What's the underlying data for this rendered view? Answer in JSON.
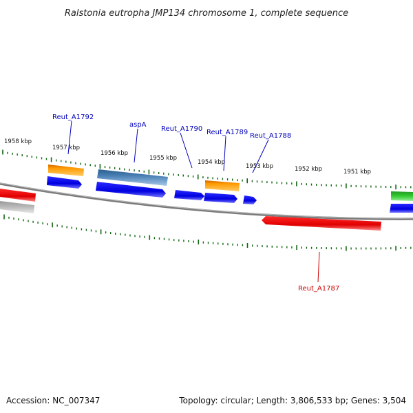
{
  "title": "Ralstonia eutropha JMP134 chromosome 1, complete sequence",
  "footer": {
    "accession": "Accession: NC_007347",
    "topology": "Topology: circular; Length: 3,806,533 bp; Genes: 3,504"
  },
  "colors": {
    "forward_cds": "#0a0aee",
    "reverse_cds": "#ee1111",
    "rna": "#ff9900",
    "pseudo": "#4477aa",
    "other": "#33bb33",
    "gray": "#bbbbbb",
    "backbone": "#808080",
    "ticks": "#116611",
    "label_forward": "#0000bb",
    "label_reverse": "#cc0000"
  },
  "kbp_labels": [
    "1958 kbp",
    "1957 kbp",
    "1956 kbp",
    "1955 kbp",
    "1954 kbp",
    "1953 kbp",
    "1952 kbp",
    "1951 kbp"
  ],
  "gene_labels": [
    {
      "id": "lbl-reut-a1792",
      "text": "Reut_A1792",
      "strand": "forward"
    },
    {
      "id": "lbl-aspa",
      "text": "aspA",
      "strand": "forward"
    },
    {
      "id": "lbl-reut-a1790",
      "text": "Reut_A1790",
      "strand": "forward"
    },
    {
      "id": "lbl-reut-a1789",
      "text": "Reut_A1789",
      "strand": "forward"
    },
    {
      "id": "lbl-reut-a1788",
      "text": "Reut_A1788",
      "strand": "forward"
    },
    {
      "id": "lbl-reut-a1787",
      "text": "Reut_A1787",
      "strand": "reverse"
    }
  ]
}
